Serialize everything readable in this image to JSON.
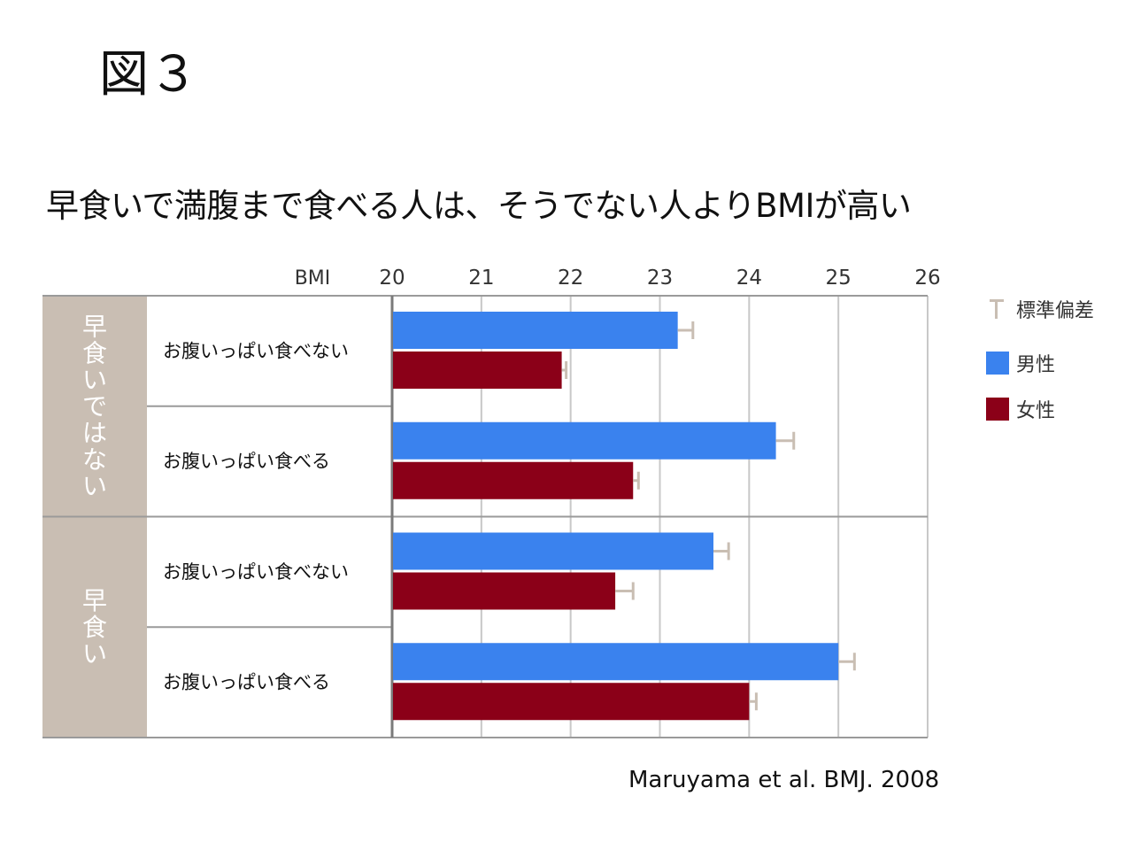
{
  "figure_label": "図３",
  "headline": "早食いで満腹まで食べる人は、そうでない人よりBMIが高い",
  "source": "Maruyama et al. BMJ. 2008",
  "legend": {
    "error_label": "標準偏差",
    "items": [
      {
        "label": "男性",
        "color": "#3a82ee"
      },
      {
        "label": "女性",
        "color": "#8b0018"
      }
    ]
  },
  "chart_data": {
    "type": "bar",
    "orientation": "horizontal",
    "axis_label": "BMI",
    "xlim": [
      20,
      26
    ],
    "ticks": [
      20,
      21,
      22,
      23,
      24,
      25,
      26
    ],
    "groups": [
      {
        "label": "早食いではない",
        "rows": [
          "お腹いっぱい食べない",
          "お腹いっぱい食べる"
        ]
      },
      {
        "label": "早食い",
        "rows": [
          "お腹いっぱい食べない",
          "お腹いっぱい食べる"
        ]
      }
    ],
    "categories": [
      "お腹いっぱい食べない",
      "お腹いっぱい食べる",
      "お腹いっぱい食べない",
      "お腹いっぱい食べる"
    ],
    "series": [
      {
        "name": "男性",
        "color": "#3a82ee",
        "values": [
          23.2,
          24.3,
          23.6,
          25.0
        ],
        "errors": [
          0.17,
          0.2,
          0.17,
          0.18
        ]
      },
      {
        "name": "女性",
        "color": "#8b0018",
        "values": [
          21.9,
          22.7,
          22.5,
          24.0
        ],
        "errors": [
          0.05,
          0.06,
          0.2,
          0.08
        ]
      }
    ],
    "grid": true,
    "legend_position": "right"
  }
}
